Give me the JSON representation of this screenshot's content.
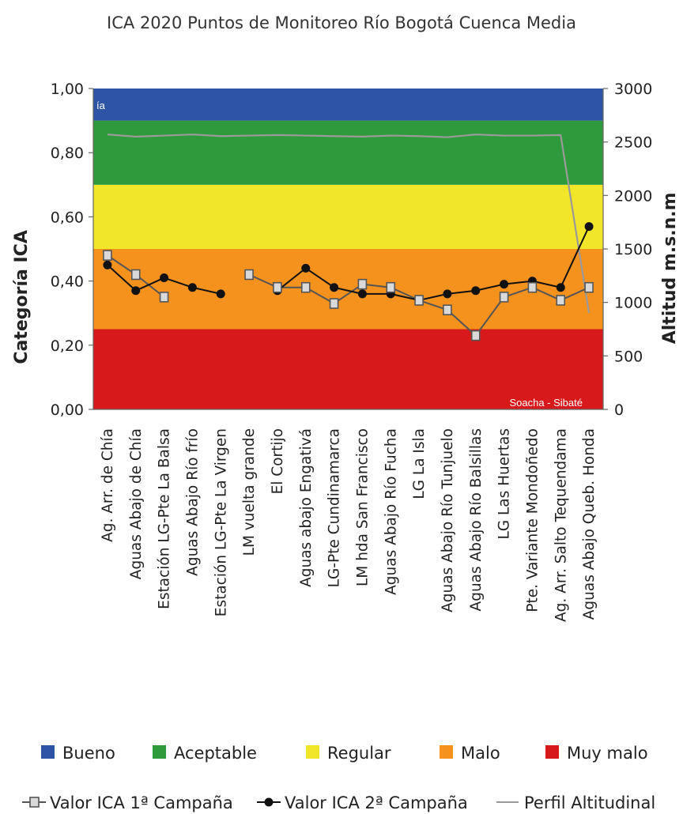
{
  "chart_data": {
    "type": "line",
    "title": "ICA 2020 Puntos de Monitoreo Río Bogotá Cuenca Media",
    "ylabel": "Categoría ICA",
    "y2label": "Altitud m.s.n.m",
    "ylim": [
      0,
      1
    ],
    "y2lim": [
      0,
      3000
    ],
    "y_ticks": [
      "0,00",
      "0,20",
      "0,40",
      "0,60",
      "0,80",
      "1,00"
    ],
    "y2_ticks": [
      "0",
      "500",
      "1000",
      "1500",
      "2000",
      "2500",
      "3000"
    ],
    "categories": [
      "Ag. Arr. de Chía",
      "Aguas Abajo de Chía",
      "Estación LG-Pte La Balsa",
      "Aguas Abajo Río frío",
      "Estación LG-Pte La Virgen",
      "LM vuelta grande",
      "El Cortijo",
      "Aguas abajo Engativá",
      "LG-Pte Cundinamarca",
      "LM hda San Francisco",
      "Aguas Abajo Río Fucha",
      "LG La Isla",
      "Aguas Abajo Río Tunjuelo",
      "Aguas Abajo Río Balsillas",
      "LG Las Huertas",
      "Pte. Variante Mondoñedo",
      "Ag. Arr. Salto Tequendama",
      "Aguas Abajo Queb. Honda"
    ],
    "bands": [
      {
        "name": "Muy malo",
        "from": 0.0,
        "to": 0.25,
        "color": "#d7191c"
      },
      {
        "name": "Malo",
        "from": 0.25,
        "to": 0.5,
        "color": "#f5921e"
      },
      {
        "name": "Regular",
        "from": 0.5,
        "to": 0.7,
        "color": "#f2e62a"
      },
      {
        "name": "Aceptable",
        "from": 0.7,
        "to": 0.9,
        "color": "#2e9a3c"
      },
      {
        "name": "Bueno",
        "from": 0.9,
        "to": 1.0,
        "color": "#2e55a5"
      }
    ],
    "band_annotations": [
      {
        "text": "ía",
        "band": "Bueno"
      },
      {
        "text": "Soacha - Sibaté",
        "band": "Muy malo"
      }
    ],
    "series": [
      {
        "name": "Valor ICA 1ª Campaña",
        "axis": "left",
        "marker": "square",
        "values": [
          0.48,
          0.42,
          0.35,
          null,
          null,
          0.42,
          0.38,
          0.38,
          0.33,
          0.39,
          0.38,
          0.34,
          0.31,
          0.23,
          0.35,
          0.38,
          0.34,
          0.38
        ]
      },
      {
        "name": "Valor ICA 2ª Campaña",
        "axis": "left",
        "marker": "circle",
        "values": [
          0.45,
          0.37,
          0.41,
          0.38,
          0.36,
          null,
          0.37,
          0.44,
          0.38,
          0.36,
          0.36,
          0.34,
          0.36,
          0.37,
          0.39,
          0.4,
          0.38,
          0.57
        ]
      },
      {
        "name": "Perfil Altitudinal",
        "axis": "right",
        "marker": "none",
        "values": [
          2570,
          2550,
          2560,
          2570,
          2555,
          2560,
          2565,
          2560,
          2555,
          2550,
          2560,
          2555,
          2545,
          2570,
          2560,
          2560,
          2565,
          900
        ]
      }
    ],
    "grid": false,
    "legend_position": "bottom"
  },
  "legend": {
    "categories": [
      {
        "label": "Bueno",
        "color": "#2e55a5"
      },
      {
        "label": "Aceptable",
        "color": "#2e9a3c"
      },
      {
        "label": "Regular",
        "color": "#f2e62a"
      },
      {
        "label": "Malo",
        "color": "#f5921e"
      },
      {
        "label": "Muy malo",
        "color": "#d7191c"
      }
    ],
    "series": [
      {
        "label": "Valor ICA 1ª Campaña",
        "symbol": "square"
      },
      {
        "label": "Valor ICA 2ª Campaña",
        "symbol": "circle"
      },
      {
        "label": "Perfil Altitudinal",
        "symbol": "line"
      }
    ]
  }
}
